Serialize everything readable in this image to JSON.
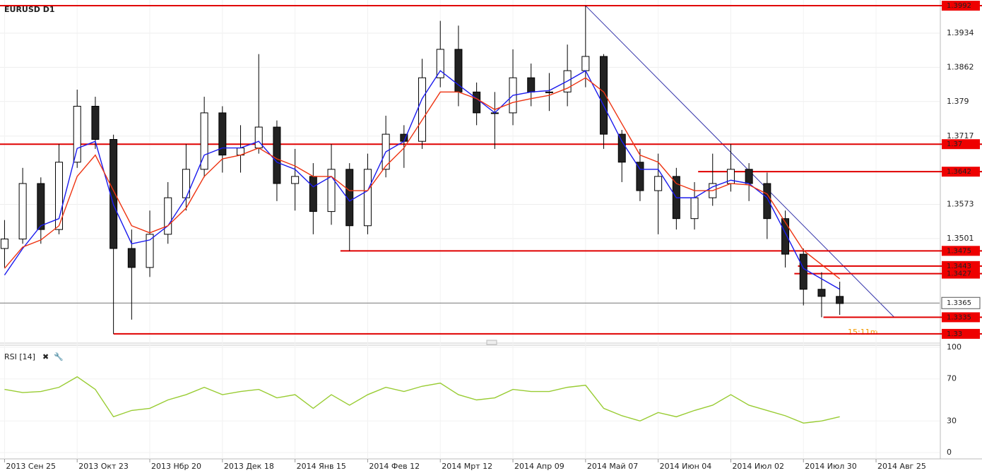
{
  "chart_data": [
    {
      "type": "candlestick",
      "title": "EURUSD D1",
      "x": [
        0,
        1,
        2,
        3,
        4,
        5,
        6,
        7,
        8,
        9,
        10,
        11,
        12,
        13,
        14,
        15,
        16,
        17,
        18,
        19,
        20,
        21,
        22,
        23,
        24,
        25,
        26,
        27,
        28,
        29,
        30,
        31,
        32,
        33,
        34,
        35,
        36,
        37,
        38,
        39,
        40,
        41,
        42,
        43,
        44,
        45,
        46
      ],
      "open": [
        1.348,
        1.35,
        1.3617,
        1.352,
        1.3662,
        1.378,
        1.371,
        1.348,
        1.344,
        1.351,
        1.3587,
        1.3647,
        1.3766,
        1.3677,
        1.3692,
        1.3736,
        1.3617,
        1.3632,
        1.3558,
        1.3647,
        1.3528,
        1.3647,
        1.3721,
        1.3706,
        1.384,
        1.39,
        1.381,
        1.3766,
        1.3766,
        1.384,
        1.381,
        1.381,
        1.3855,
        1.3885,
        1.3721,
        1.3662,
        1.3602,
        1.3632,
        1.3543,
        1.3587,
        1.3617,
        1.3647,
        1.3617,
        1.3543,
        1.3468,
        1.3394,
        1.3379
      ],
      "high": [
        1.354,
        1.365,
        1.363,
        1.37,
        1.3815,
        1.38,
        1.372,
        1.352,
        1.356,
        1.362,
        1.37,
        1.38,
        1.378,
        1.374,
        1.389,
        1.375,
        1.369,
        1.366,
        1.37,
        1.366,
        1.368,
        1.376,
        1.374,
        1.388,
        1.396,
        1.395,
        1.383,
        1.381,
        1.39,
        1.387,
        1.385,
        1.391,
        1.3992,
        1.389,
        1.373,
        1.369,
        1.368,
        1.365,
        1.362,
        1.368,
        1.37,
        1.366,
        1.364,
        1.356,
        1.348,
        1.343,
        1.341
      ],
      "low": [
        1.344,
        1.349,
        1.349,
        1.351,
        1.365,
        1.369,
        1.33,
        1.333,
        1.342,
        1.349,
        1.356,
        1.363,
        1.364,
        1.364,
        1.368,
        1.358,
        1.356,
        1.351,
        1.353,
        1.3475,
        1.351,
        1.363,
        1.365,
        1.369,
        1.382,
        1.378,
        1.374,
        1.369,
        1.374,
        1.378,
        1.377,
        1.378,
        1.382,
        1.369,
        1.362,
        1.358,
        1.351,
        1.352,
        1.352,
        1.357,
        1.36,
        1.358,
        1.35,
        1.344,
        1.336,
        1.3335,
        1.334
      ],
      "close": [
        1.35,
        1.3617,
        1.352,
        1.3662,
        1.378,
        1.371,
        1.348,
        1.344,
        1.351,
        1.3587,
        1.3647,
        1.3766,
        1.3677,
        1.3692,
        1.3736,
        1.3617,
        1.3632,
        1.3558,
        1.3647,
        1.3528,
        1.3647,
        1.3721,
        1.3706,
        1.384,
        1.39,
        1.381,
        1.3766,
        1.3766,
        1.384,
        1.381,
        1.381,
        1.3855,
        1.3885,
        1.3721,
        1.3662,
        1.3602,
        1.3632,
        1.3543,
        1.3587,
        1.3617,
        1.3647,
        1.3617,
        1.3543,
        1.3468,
        1.3394,
        1.3379,
        1.3364
      ],
      "series": [
        {
          "color": "#1a1aee",
          "values": [
            1.3424,
            1.348,
            1.3528,
            1.3543,
            1.3691,
            1.3706,
            1.3572,
            1.349,
            1.3498,
            1.3528,
            1.3587,
            1.3677,
            1.3692,
            1.3692,
            1.3706,
            1.3662,
            1.3647,
            1.361,
            1.3632,
            1.358,
            1.3602,
            1.3684,
            1.3706,
            1.3796,
            1.3855,
            1.3825,
            1.3796,
            1.3766,
            1.3803,
            1.381,
            1.3813,
            1.3833,
            1.3855,
            1.3781,
            1.3706,
            1.3647,
            1.3647,
            1.3587,
            1.3587,
            1.361,
            1.3624,
            1.3617,
            1.3587,
            1.3513,
            1.3438,
            1.3416,
            1.3394
          ]
        },
        {
          "color": "#ee3311",
          "values": [
            1.3438,
            1.3483,
            1.3498,
            1.3528,
            1.3632,
            1.3677,
            1.3602,
            1.3528,
            1.3513,
            1.3528,
            1.3565,
            1.3632,
            1.3669,
            1.3677,
            1.3692,
            1.3669,
            1.3654,
            1.3632,
            1.3632,
            1.3602,
            1.3602,
            1.3654,
            1.3692,
            1.3751,
            1.381,
            1.381,
            1.3796,
            1.3773,
            1.3788,
            1.3796,
            1.3803,
            1.3818,
            1.384,
            1.381,
            1.3743,
            1.3677,
            1.3662,
            1.3617,
            1.3602,
            1.3602,
            1.3617,
            1.3614,
            1.3595,
            1.3535,
            1.3476,
            1.3446,
            1.3416
          ]
        }
      ],
      "levels": [
        {
          "value": 1.3992,
          "from": -0.25
        },
        {
          "value": 1.37,
          "from": -0.25
        },
        {
          "value": 1.3642,
          "from": 38.2
        },
        {
          "value": 1.3475,
          "from": 18.5
        },
        {
          "value": 1.3443,
          "from": 43.7
        },
        {
          "value": 1.3427,
          "from": 43.5
        },
        {
          "value": 1.3335,
          "from": 45.1
        },
        {
          "value": 1.33,
          "from": 6
        }
      ],
      "current": 1.3365,
      "trendline": {
        "x": [
          32,
          49
        ],
        "y": [
          1.3992,
          1.3335
        ]
      },
      "timer": "15:11m",
      "xlim": [
        -0.25,
        51.5
      ],
      "ylim": [
        1.3282,
        1.4004
      ],
      "yticks": [
        1.3934,
        1.3862,
        1.379,
        1.3717,
        1.3573,
        1.3501
      ],
      "xticks": [
        {
          "value": 0,
          "label": "2013 Сен 25"
        },
        {
          "value": 4,
          "label": "2013 Окт 23"
        },
        {
          "value": 8,
          "label": "2013 Нбр 20"
        },
        {
          "value": 12,
          "label": "2013 Дек 18"
        },
        {
          "value": 16,
          "label": "2014 Янв 15"
        },
        {
          "value": 20,
          "label": "2014 Фев 12"
        },
        {
          "value": 24,
          "label": "2014 Мрт 12"
        },
        {
          "value": 28,
          "label": "2014 Апр 09"
        },
        {
          "value": 32,
          "label": "2014 Май 07"
        },
        {
          "value": 36,
          "label": "2014 Июн 04"
        },
        {
          "value": 40,
          "label": "2014 Июл 02"
        },
        {
          "value": 44,
          "label": "2014 Июл 30"
        },
        {
          "value": 48,
          "label": "2014 Авг 25"
        }
      ],
      "grid": true
    },
    {
      "type": "line",
      "title": "RSI [14]",
      "color": "#99cc33",
      "values": [
        60,
        57,
        58,
        62,
        72,
        60,
        34,
        40,
        42,
        50,
        55,
        62,
        55,
        58,
        60,
        52,
        55,
        42,
        55,
        45,
        55,
        62,
        58,
        63,
        66,
        55,
        50,
        52,
        60,
        58,
        58,
        62,
        64,
        42,
        35,
        30,
        38,
        34,
        40,
        45,
        55,
        45,
        40,
        35,
        28,
        30,
        34
      ],
      "ylim": [
        0,
        100
      ],
      "yticks": [
        100,
        70,
        30,
        0
      ]
    }
  ]
}
